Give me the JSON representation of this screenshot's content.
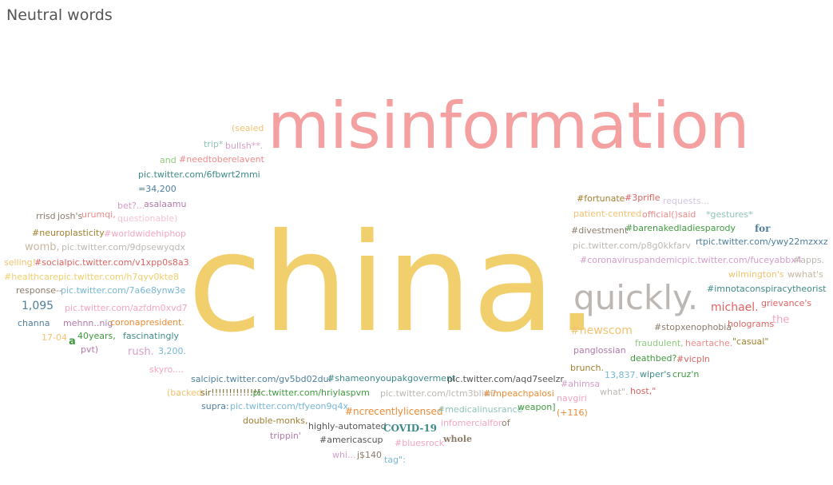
{
  "title": "Neutral words",
  "chart_data": {
    "type": "wordcloud",
    "title": "Neutral words",
    "words": [
      {
        "text": "misinformation",
        "size": 80,
        "color": "#f4a0a0"
      },
      {
        "text": "china.",
        "size": 170,
        "color": "#f0cf6c"
      },
      {
        "text": "quickly.",
        "size": 42,
        "color": "#bdb7b3"
      },
      {
        "text": "(sealed",
        "size": 11,
        "color": "#f3c26f"
      },
      {
        "text": "trip*",
        "size": 11,
        "color": "#8fc3b9"
      },
      {
        "text": "bullsh**.",
        "size": 11,
        "color": "#d59ec8"
      },
      {
        "text": "and",
        "size": 11,
        "color": "#8fca80"
      },
      {
        "text": "#needtoberelavent",
        "size": 11,
        "color": "#f08a8a"
      },
      {
        "text": "pic.twitter.com/6fbwrt2mmi",
        "size": 11,
        "color": "#3d8b88"
      },
      {
        "text": "=34,200",
        "size": 11,
        "color": "#4f7f9c"
      },
      {
        "text": "bet?...",
        "size": 11,
        "color": "#d59ec8"
      },
      {
        "text": "asalaamu",
        "size": 11,
        "color": "#b27aa9"
      },
      {
        "text": "rrisd",
        "size": 11,
        "color": "#8c7b6b"
      },
      {
        "text": "josh's",
        "size": 11,
        "color": "#8c7b6b"
      },
      {
        "text": "urumqi,",
        "size": 11,
        "color": "#f08a8a"
      },
      {
        "text": "questionable)",
        "size": 11,
        "color": "#f4c4d2"
      },
      {
        "text": "#neuroplasticity",
        "size": 11,
        "color": "#a17f2e"
      },
      {
        "text": "#worldwidehiphop",
        "size": 11,
        "color": "#f4a5c2"
      },
      {
        "text": "womb,",
        "size": 13,
        "color": "#c8b6a2"
      },
      {
        "text": "pic.twitter.com/9dpsewyqdx",
        "size": 11,
        "color": "#bdb7b3"
      },
      {
        "text": "selling!",
        "size": 11,
        "color": "#f3c26f"
      },
      {
        "text": "#socialpic.twitter.com/v1xpp0s8a3",
        "size": 11,
        "color": "#e06464"
      },
      {
        "text": "#healthcarepic.twitter.com/h7qyv0kte8",
        "size": 11,
        "color": "#f0cf6c"
      },
      {
        "text": "response--",
        "size": 11,
        "color": "#8c7b6b"
      },
      {
        "text": "pic.twitter.com/7a6e8ynw3e",
        "size": 11,
        "color": "#77b8d6"
      },
      {
        "text": "1,095",
        "size": 14,
        "color": "#4f7f9c"
      },
      {
        "text": "pic.twitter.com/azfdm0xvd7",
        "size": 11,
        "color": "#f4a5c2"
      },
      {
        "text": "channa",
        "size": 11,
        "color": "#4f7f9c"
      },
      {
        "text": "mehnn..nig",
        "size": 11,
        "color": "#b27aa9"
      },
      {
        "text": "coronapresident.",
        "size": 11,
        "color": "#e98c34"
      },
      {
        "text": "17-04",
        "size": 11,
        "color": "#f3c26f"
      },
      {
        "text": "a",
        "size": 13,
        "color": "#3f9a3f"
      },
      {
        "text": "40years,",
        "size": 11,
        "color": "#3f9a3f"
      },
      {
        "text": "pvt)",
        "size": 11,
        "color": "#b27aa9"
      },
      {
        "text": "fascinatingly",
        "size": 11,
        "color": "#3d8b88"
      },
      {
        "text": "rush.",
        "size": 13,
        "color": "#d59ec8"
      },
      {
        "text": "3,200.",
        "size": 11,
        "color": "#77b8d6"
      },
      {
        "text": "skyro....",
        "size": 11,
        "color": "#f4a5c2"
      },
      {
        "text": "salcipic.twitter.com/gv5bd02dui",
        "size": 11,
        "color": "#4f7f9c"
      },
      {
        "text": "#shameonyoupakgoverment",
        "size": 11,
        "color": "#3d8b88"
      },
      {
        "text": "pic.twitter.com/aqd7seelzr",
        "size": 11,
        "color": "#555555"
      },
      {
        "text": "(backed",
        "size": 11,
        "color": "#f3c26f"
      },
      {
        "text": "sir!!!!!!!!!!!!!!",
        "size": 11,
        "color": "#7a6a2e"
      },
      {
        "text": ".pic.twitter.com/hriylaspvm",
        "size": 11,
        "color": "#3f9a3f"
      },
      {
        "text": "pic.twitter.com/lctm3bliw7",
        "size": 11,
        "color": "#bdb7b3"
      },
      {
        "text": "#impeachpalosi",
        "size": 11,
        "color": "#e98c34"
      },
      {
        "text": "supra:",
        "size": 11,
        "color": "#4f7f9c"
      },
      {
        "text": "pic.twitter.com/tfyeon9q4x",
        "size": 11,
        "color": "#77b8d6"
      },
      {
        "text": "#ncrecentlylicensed",
        "size": 12,
        "color": "#e98c34"
      },
      {
        "text": "#medicalinusrance",
        "size": 11,
        "color": "#8fc3b9"
      },
      {
        "text": "weapon]",
        "size": 11,
        "color": "#3f9a3f"
      },
      {
        "text": "double-monks,",
        "size": 11,
        "color": "#a17f2e"
      },
      {
        "text": "highly-automated",
        "size": 11,
        "color": "#555555"
      },
      {
        "text": "COVID-19",
        "size": 12,
        "color": "#3d8b88"
      },
      {
        "text": "infomercialfor",
        "size": 11,
        "color": "#f4a5c2"
      },
      {
        "text": "of",
        "size": 11,
        "color": "#8c7b6b"
      },
      {
        "text": "trippin'",
        "size": 11,
        "color": "#b27aa9"
      },
      {
        "text": "#americascup",
        "size": 11,
        "color": "#555555"
      },
      {
        "text": "#bluesrock",
        "size": 11,
        "color": "#f4a5c2"
      },
      {
        "text": "whole",
        "size": 11,
        "color": "#8c7b6b"
      },
      {
        "text": "whi...",
        "size": 11,
        "color": "#d59ec8"
      },
      {
        "text": "j$140",
        "size": 11,
        "color": "#8c7b6b"
      },
      {
        "text": "tag\":",
        "size": 11,
        "color": "#77b8d6"
      },
      {
        "text": "#fortunate",
        "size": 11,
        "color": "#a17f2e"
      },
      {
        "text": "#3prifle",
        "size": 11,
        "color": "#e06464"
      },
      {
        "text": "requests...",
        "size": 11,
        "color": "#d0c6e0"
      },
      {
        "text": "patient-centred",
        "size": 11,
        "color": "#f3c26f"
      },
      {
        "text": "official()said",
        "size": 11,
        "color": "#f08a8a"
      },
      {
        "text": "*gestures*",
        "size": 11,
        "color": "#8fc3b9"
      },
      {
        "text": "#divestment",
        "size": 11,
        "color": "#8c7b6b"
      },
      {
        "text": "#barenakedladiesparody",
        "size": 11,
        "color": "#3f9a3f"
      },
      {
        "text": "for",
        "size": 12,
        "color": "#4f7f9c"
      },
      {
        "text": "pic.twitter.com/p8g0kkfarv",
        "size": 11,
        "color": "#bdb7b3"
      },
      {
        "text": "rtpic.twitter.com/ywy22mzxxz",
        "size": 11,
        "color": "#4f7f9c"
      },
      {
        "text": "#coronaviruspandemicpic.twitter.com/fuceyabbx4",
        "size": 11,
        "color": "#d59ec8"
      },
      {
        "text": "#apps.",
        "size": 11,
        "color": "#bdb7b3"
      },
      {
        "text": "wilmington's",
        "size": 11,
        "color": "#f3c26f"
      },
      {
        "text": "wwhat's",
        "size": 11,
        "color": "#c8b6a2"
      },
      {
        "text": "#imnotaconspiracytheorist",
        "size": 11,
        "color": "#3d8b88"
      },
      {
        "text": "michael.",
        "size": 14,
        "color": "#e06464"
      },
      {
        "text": "grievance's",
        "size": 11,
        "color": "#e06464"
      },
      {
        "text": "#newscom",
        "size": 14,
        "color": "#f3c26f"
      },
      {
        "text": "the",
        "size": 13,
        "color": "#f4a5c2"
      },
      {
        "text": "#stopxenophobia",
        "size": 11,
        "color": "#8c7b6b"
      },
      {
        "text": "holograms",
        "size": 11,
        "color": "#e06464"
      },
      {
        "text": "fraudulent,",
        "size": 11,
        "color": "#8fca80"
      },
      {
        "text": "heartache.",
        "size": 11,
        "color": "#f08a8a"
      },
      {
        "text": "\"casual\"",
        "size": 11,
        "color": "#a17f2e"
      },
      {
        "text": "panglossian",
        "size": 11,
        "color": "#b27aa9"
      },
      {
        "text": "deathbed?",
        "size": 11,
        "color": "#3f9a3f"
      },
      {
        "text": "#vicpln",
        "size": 11,
        "color": "#e06464"
      },
      {
        "text": "brunch.",
        "size": 11,
        "color": "#a17f2e"
      },
      {
        "text": "13,837.",
        "size": 11,
        "color": "#77b8d6"
      },
      {
        "text": "wiper's",
        "size": 11,
        "color": "#3d8b88"
      },
      {
        "text": "cruz'n",
        "size": 11,
        "color": "#3f9a3f"
      },
      {
        "text": "#ahimsa",
        "size": 11,
        "color": "#d59ec8"
      },
      {
        "text": "what\".",
        "size": 11,
        "color": "#bdb7b3"
      },
      {
        "text": "host,\"",
        "size": 11,
        "color": "#e06464"
      },
      {
        "text": "navgiri",
        "size": 11,
        "color": "#f4a5c2"
      },
      {
        "text": "(+116)",
        "size": 11,
        "color": "#e98c34"
      }
    ]
  }
}
